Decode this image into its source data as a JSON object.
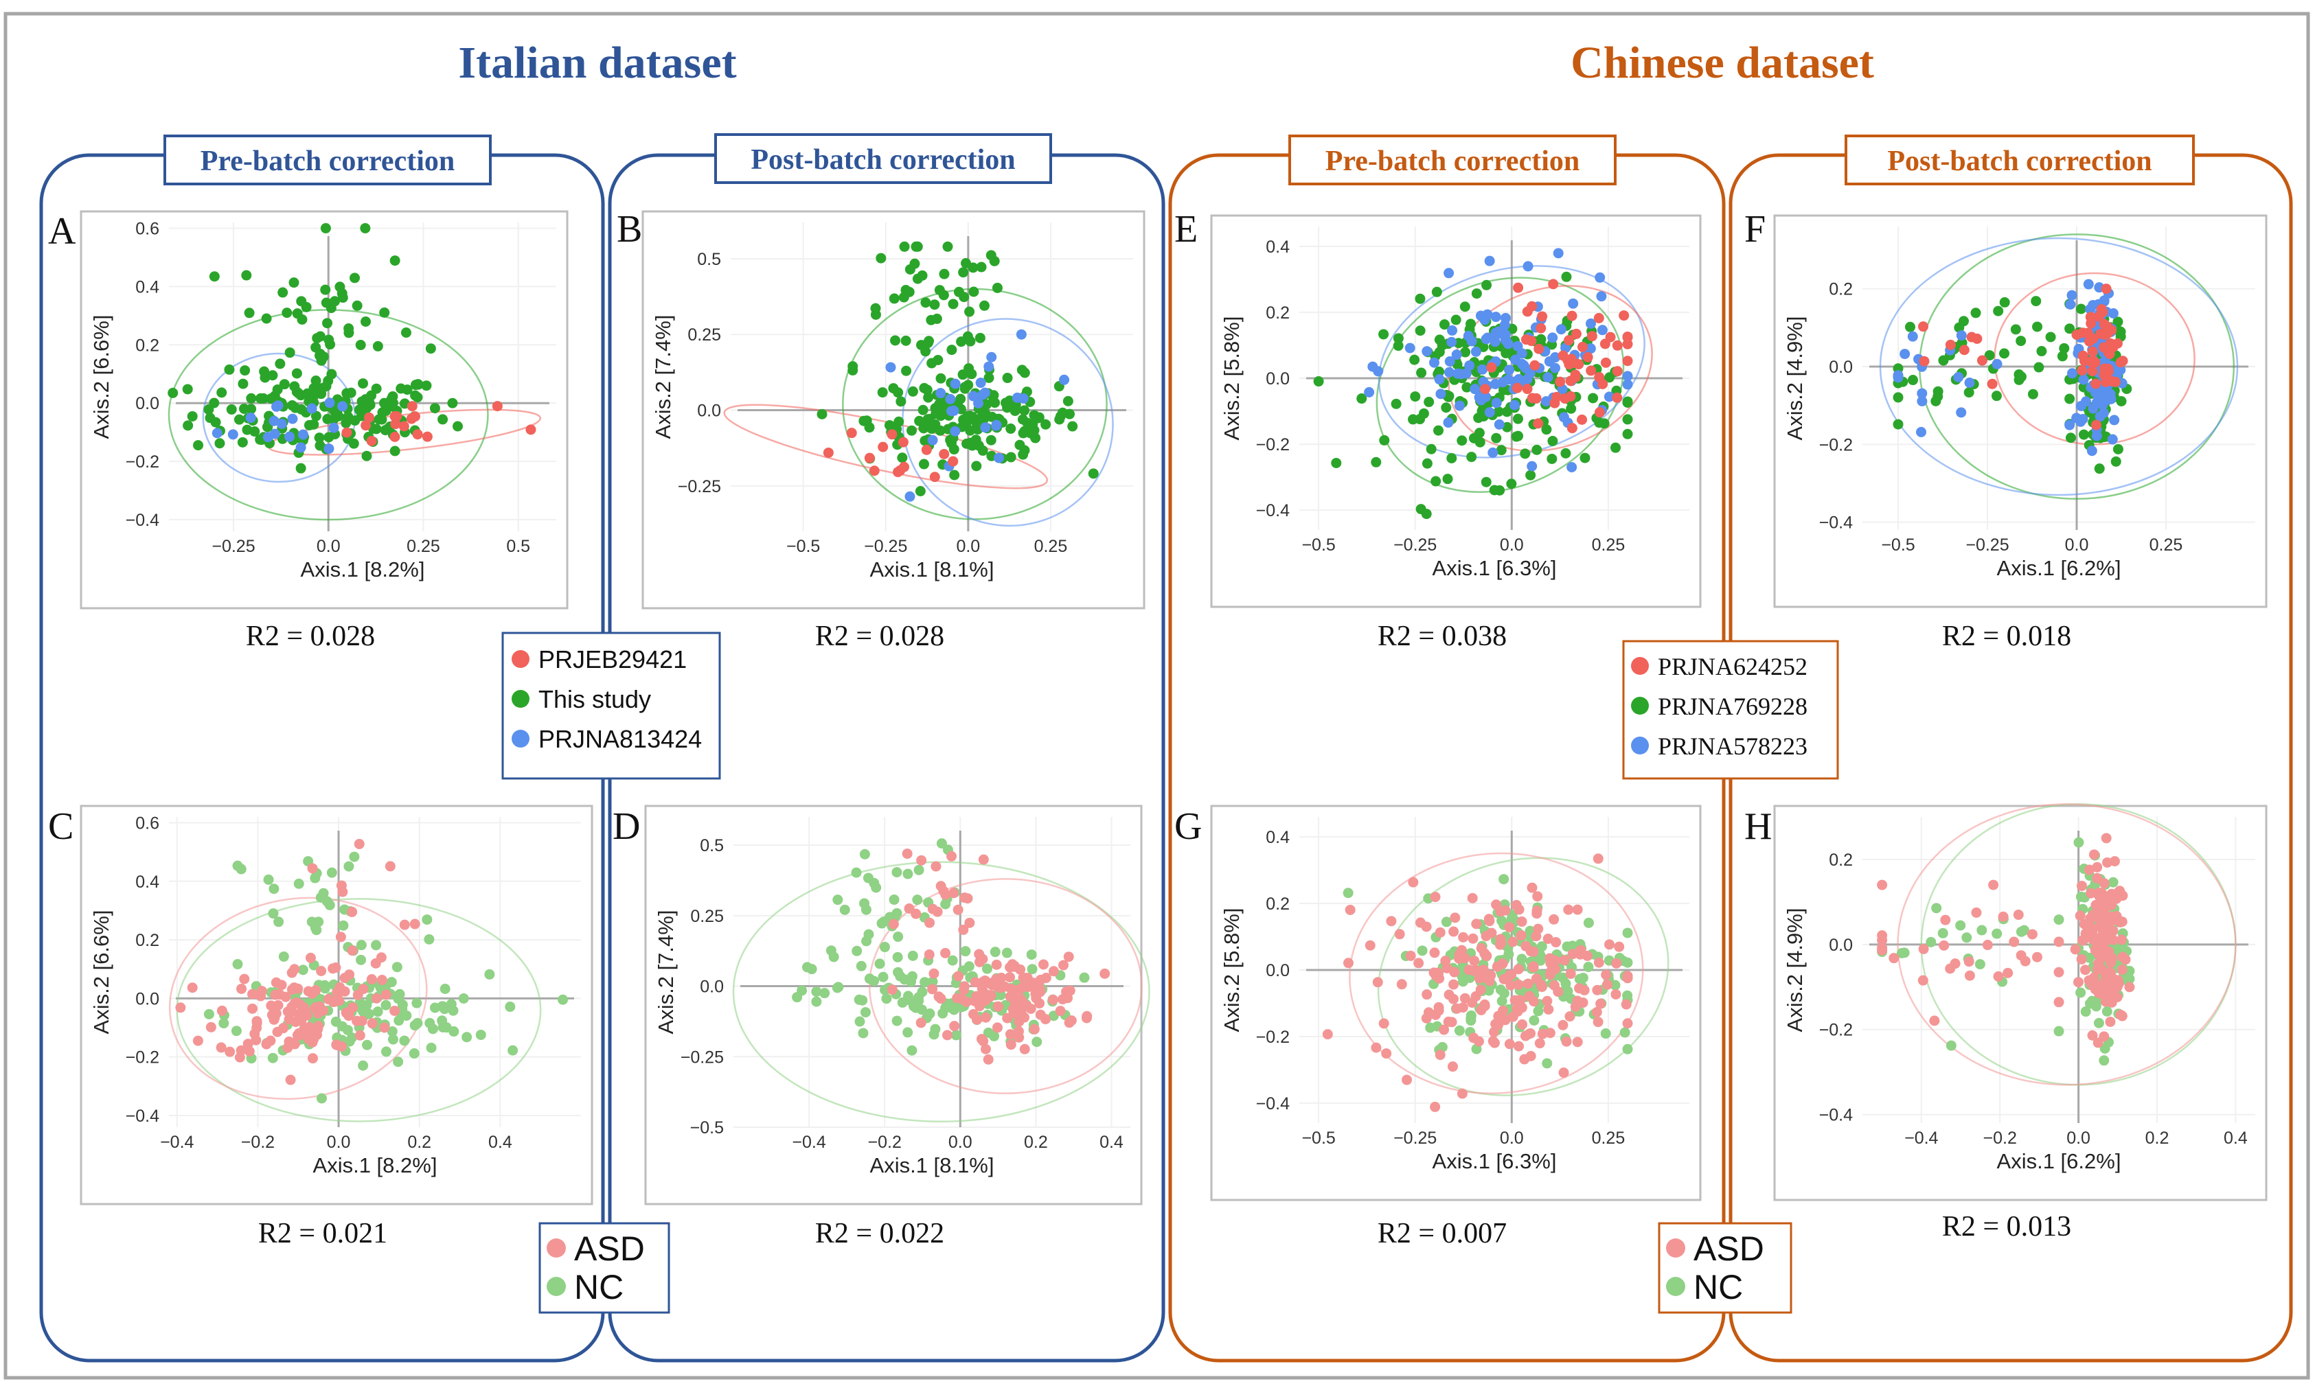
{
  "figure": {
    "dataset_titles": {
      "italian": "Italian dataset",
      "chinese": "Chinese dataset"
    },
    "panel_headers": {
      "pre": "Pre-batch correction",
      "post": "Post-batch correction"
    },
    "colors": {
      "italian": "#2f5597",
      "chinese": "#c55a11",
      "red_strong": "#f0625a",
      "green_strong": "#2aa52a",
      "blue_strong": "#5a90ee",
      "red_light": "#f39595",
      "green_light": "#8fd185",
      "axis_line": "#a8a8a8"
    },
    "legends": {
      "italian_batch": [
        {
          "label": "PRJEB29421",
          "color": "#f0625a"
        },
        {
          "label": "This study",
          "color": "#2aa52a"
        },
        {
          "label": "PRJNA813424",
          "color": "#5a90ee"
        }
      ],
      "chinese_batch": [
        {
          "label": "PRJNA624252",
          "color": "#f0625a"
        },
        {
          "label": "PRJNA769228",
          "color": "#2aa52a"
        },
        {
          "label": "PRJNA578223",
          "color": "#5a90ee"
        }
      ],
      "group": [
        {
          "label": "ASD",
          "color": "#f39595"
        },
        {
          "label": "NC",
          "color": "#8fd185"
        }
      ]
    }
  },
  "chart_data": [
    {
      "panel": "A",
      "type": "scatter",
      "xlabel": "Axis.1   [8.2%]",
      "ylabel": "Axis.2   [6.6%]",
      "xticks": [
        -0.25,
        0.0,
        0.25,
        0.5
      ],
      "yticks": [
        0.6,
        0.4,
        0.2,
        0.0,
        -0.2,
        -0.4
      ],
      "xlim": [
        -0.42,
        0.6
      ],
      "ylim": [
        -0.44,
        0.62
      ],
      "r2": "R2 = 0.028",
      "series": [
        "PRJEB29421",
        "This study",
        "PRJNA813424"
      ]
    },
    {
      "panel": "B",
      "type": "scatter",
      "xlabel": "Axis.1   [8.1%]",
      "ylabel": "Axis.2   [7.4%]",
      "xticks": [
        -0.5,
        -0.25,
        0.0,
        0.25
      ],
      "yticks": [
        0.5,
        0.25,
        0.0,
        -0.25
      ],
      "xlim": [
        -0.72,
        0.5
      ],
      "ylim": [
        -0.4,
        0.62
      ],
      "r2": "R2 = 0.028",
      "series": [
        "PRJEB29421",
        "This study",
        "PRJNA813424"
      ]
    },
    {
      "panel": "C",
      "type": "scatter",
      "xlabel": "Axis.1   [8.2%]",
      "ylabel": "Axis.2   [6.6%]",
      "xticks": [
        -0.4,
        -0.2,
        0.0,
        0.2,
        0.4
      ],
      "yticks": [
        0.6,
        0.4,
        0.2,
        0.0,
        -0.2,
        -0.4
      ],
      "xlim": [
        -0.42,
        0.6
      ],
      "ylim": [
        -0.44,
        0.62
      ],
      "r2": "R2 = 0.021",
      "series": [
        "ASD",
        "NC"
      ]
    },
    {
      "panel": "D",
      "type": "scatter",
      "xlabel": "Axis.1   [8.1%]",
      "ylabel": "Axis.2   [7.4%]",
      "xticks": [
        -0.4,
        -0.2,
        0.0,
        0.2,
        0.4
      ],
      "yticks": [
        0.5,
        0.25,
        0.0,
        -0.25,
        -0.5
      ],
      "xlim": [
        -0.6,
        0.45
      ],
      "ylim": [
        -0.5,
        0.6
      ],
      "r2": "R2 = 0.022",
      "series": [
        "ASD",
        "NC"
      ]
    },
    {
      "panel": "E",
      "type": "scatter",
      "xlabel": "Axis.1   [6.3%]",
      "ylabel": "Axis.2   [5.8%]",
      "xticks": [
        -0.5,
        -0.25,
        0.0,
        0.25
      ],
      "yticks": [
        0.4,
        0.2,
        0.0,
        -0.2,
        -0.4
      ],
      "xlim": [
        -0.55,
        0.46
      ],
      "ylim": [
        -0.46,
        0.46
      ],
      "r2": "R2 = 0.038",
      "series": [
        "PRJNA624252",
        "PRJNA769228",
        "PRJNA578223"
      ]
    },
    {
      "panel": "F",
      "type": "scatter",
      "xlabel": "Axis.1   [6.2%]",
      "ylabel": "Axis.2   [4.9%]",
      "xticks": [
        -0.5,
        -0.25,
        0.0,
        0.25
      ],
      "yticks": [
        0.2,
        0.0,
        -0.2,
        -0.4
      ],
      "xlim": [
        -0.6,
        0.5
      ],
      "ylim": [
        -0.42,
        0.36
      ],
      "r2": "R2 = 0.018",
      "series": [
        "PRJNA624252",
        "PRJNA769228",
        "PRJNA578223"
      ]
    },
    {
      "panel": "G",
      "type": "scatter",
      "xlabel": "Axis.1   [6.3%]",
      "ylabel": "Axis.2   [5.8%]",
      "xticks": [
        -0.5,
        -0.25,
        0.0,
        0.25
      ],
      "yticks": [
        0.4,
        0.2,
        0.0,
        -0.2,
        -0.4
      ],
      "xlim": [
        -0.55,
        0.46
      ],
      "ylim": [
        -0.46,
        0.46
      ],
      "r2": "R2 = 0.007",
      "series": [
        "ASD",
        "NC"
      ]
    },
    {
      "panel": "H",
      "type": "scatter",
      "xlabel": "Axis.1   [6.2%]",
      "ylabel": "Axis.2   [4.9%]",
      "xticks": [
        -0.4,
        -0.2,
        0.0,
        0.2,
        0.4
      ],
      "yticks": [
        0.2,
        0.0,
        -0.2,
        -0.4
      ],
      "xlim": [
        -0.55,
        0.45
      ],
      "ylim": [
        -0.42,
        0.3
      ],
      "r2": "R2 = 0.013",
      "series": [
        "ASD",
        "NC"
      ]
    }
  ]
}
